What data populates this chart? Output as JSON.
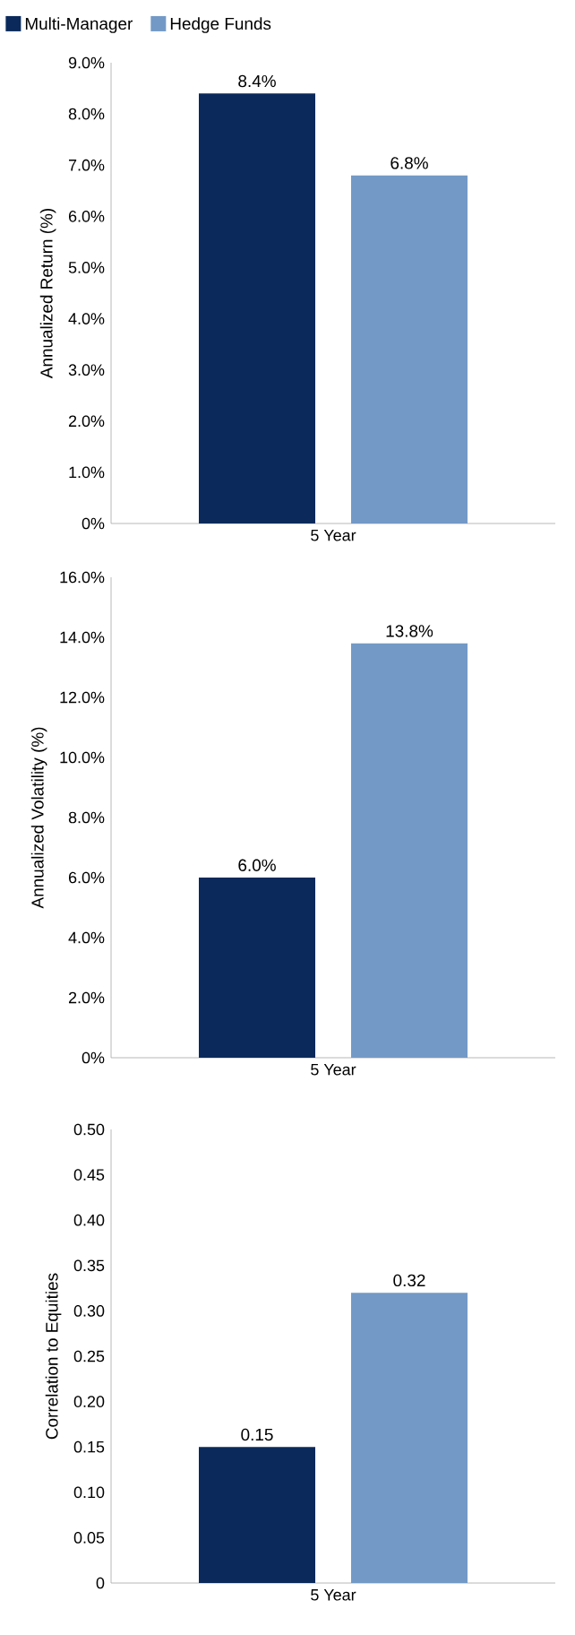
{
  "chart_data": [
    {
      "type": "bar",
      "categories": [
        "5 Year"
      ],
      "ylabel": "Annualized Return (%)",
      "ylim": [
        0,
        9
      ],
      "yticks": [
        {
          "value": 0,
          "label": "0%"
        },
        {
          "value": 1,
          "label": "1.0%"
        },
        {
          "value": 2,
          "label": "2.0%"
        },
        {
          "value": 3,
          "label": "3.0%"
        },
        {
          "value": 4,
          "label": "4.0%"
        },
        {
          "value": 5,
          "label": "5.0%"
        },
        {
          "value": 6,
          "label": "6.0%"
        },
        {
          "value": 7,
          "label": "7.0%"
        },
        {
          "value": 8,
          "label": "8.0%"
        },
        {
          "value": 9,
          "label": "9.0%"
        }
      ],
      "series": [
        {
          "name": "Multi-Manager",
          "color": "#0b2a5b",
          "values": [
            8.4
          ],
          "value_labels": [
            "8.4%"
          ]
        },
        {
          "name": "Hedge Funds",
          "color": "#7399c6",
          "values": [
            6.8
          ],
          "value_labels": [
            "6.8%"
          ]
        }
      ],
      "legend": "top",
      "grid": false
    },
    {
      "type": "bar",
      "categories": [
        "5 Year"
      ],
      "ylabel": "Annualized Volatility (%)",
      "ylim": [
        0,
        16
      ],
      "yticks": [
        {
          "value": 0,
          "label": "0%"
        },
        {
          "value": 2,
          "label": "2.0%"
        },
        {
          "value": 4,
          "label": "4.0%"
        },
        {
          "value": 6,
          "label": "6.0%"
        },
        {
          "value": 8,
          "label": "8.0%"
        },
        {
          "value": 10,
          "label": "10.0%"
        },
        {
          "value": 12,
          "label": "12.0%"
        },
        {
          "value": 14,
          "label": "14.0%"
        },
        {
          "value": 16,
          "label": "16.0%"
        }
      ],
      "series": [
        {
          "color": "#0b2a5b",
          "values": [
            6.0
          ],
          "value_labels": [
            "6.0%"
          ]
        },
        {
          "color": "#7399c6",
          "values": [
            13.8
          ],
          "value_labels": [
            "13.8%"
          ]
        }
      ],
      "grid": false
    },
    {
      "type": "bar",
      "categories": [
        "5 Year"
      ],
      "ylabel": "Correlation to Equities",
      "ylim": [
        0,
        0.5
      ],
      "yticks": [
        0,
        0.05,
        {
          "value": 0.1,
          "label": "0.10"
        },
        0.15,
        {
          "value": 0.2,
          "label": "0.20"
        },
        0.25,
        {
          "value": 0.3,
          "label": "0.30"
        },
        0.35,
        {
          "value": 0.4,
          "label": "0.40"
        },
        0.45,
        {
          "value": 0.5,
          "label": "0.50"
        }
      ],
      "series": [
        {
          "color": "#0b2a5b",
          "values": [
            0.15
          ],
          "value_labels": [
            "0.15"
          ]
        },
        {
          "color": "#7399c6",
          "values": [
            0.32
          ],
          "value_labels": [
            "0.32"
          ]
        }
      ],
      "grid": false
    }
  ]
}
